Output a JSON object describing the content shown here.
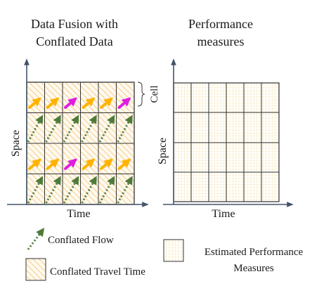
{
  "left_panel": {
    "title_lines": [
      "Data Fusion with",
      "Conflated Data"
    ],
    "x_axis_label": "Time",
    "y_axis_label": "Space",
    "cell_label": "Cell",
    "arrow_rows": [
      [
        "orange",
        "orange",
        "magenta",
        "orange",
        "orange",
        "magenta"
      ],
      [
        "dotted",
        "dotted",
        "dotted",
        "dotted",
        "dotted",
        "dotted"
      ],
      [
        "orange",
        "orange",
        "magenta",
        "orange",
        "orange",
        "orange"
      ],
      [
        "dotted",
        "dotted",
        "dotted",
        "dotted",
        "dotted",
        "dotted"
      ]
    ]
  },
  "right_panel": {
    "title_lines": [
      "Performance",
      "measures"
    ],
    "x_axis_label": "Time",
    "y_axis_label": "Space"
  },
  "legend": {
    "conflated_flow": "Conflated Flow",
    "conflated_travel_time": "Conflated Travel Time",
    "estimated_performance_lines": [
      "Estimated Performance",
      "Measures"
    ]
  },
  "colors": {
    "axis": "#44546a",
    "grid_line": "#333333",
    "hatch": "#f6cf8f",
    "fine_grid": "#f2d37a",
    "arrow_orange": "#ffb300",
    "arrow_magenta": "#e01ee0",
    "arrow_green": "#4e7a3a"
  }
}
